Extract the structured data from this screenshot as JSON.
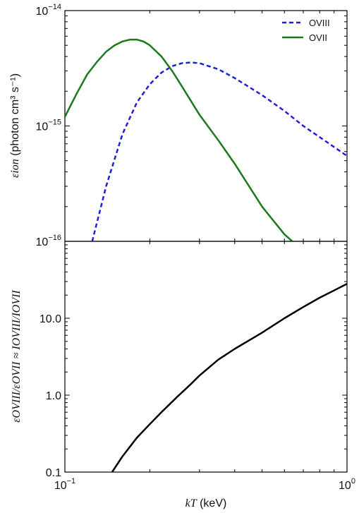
{
  "chart_data": [
    {
      "type": "line",
      "panel": "top",
      "yscale": "log",
      "xscale": "log",
      "xlim": [
        0.1,
        1.0
      ],
      "ylim": [
        1e-16,
        1e-14
      ],
      "ylabel_math": "εion",
      "ylabel_units": " (photon cm³ s⁻¹)",
      "ytick_labels": [
        {
          "base": "10",
          "exp": "−14",
          "value": 1e-14
        },
        {
          "base": "10",
          "exp": "−15",
          "value": 1e-15
        },
        {
          "base": "10",
          "exp": "−16",
          "value": 1e-16
        }
      ],
      "legend_position": "top-right",
      "series": [
        {
          "name": "OVIII",
          "style": "dashed",
          "color": "#1f1fe0",
          "x": [
            0.125,
            0.14,
            0.16,
            0.18,
            0.2,
            0.22,
            0.24,
            0.26,
            0.28,
            0.3,
            0.35,
            0.4,
            0.5,
            0.6,
            0.7,
            0.8,
            1.0
          ],
          "y": [
            1e-16,
            3e-16,
            8.5e-16,
            1.6e-15,
            2.3e-15,
            2.9e-15,
            3.3e-15,
            3.5e-15,
            3.55e-15,
            3.5e-15,
            3.1e-15,
            2.6e-15,
            1.85e-15,
            1.35e-15,
            1e-15,
            8e-16,
            5.5e-16
          ]
        },
        {
          "name": "OVII",
          "style": "solid",
          "color": "#1a7a1a",
          "x": [
            0.1,
            0.11,
            0.12,
            0.13,
            0.14,
            0.15,
            0.16,
            0.17,
            0.18,
            0.19,
            0.2,
            0.22,
            0.24,
            0.26,
            0.3,
            0.35,
            0.4,
            0.5,
            0.6,
            0.64
          ],
          "y": [
            1.2e-15,
            1.9e-15,
            2.8e-15,
            3.6e-15,
            4.4e-15,
            5e-15,
            5.4e-15,
            5.6e-15,
            5.6e-15,
            5.4e-15,
            5e-15,
            4e-15,
            3e-15,
            2.2e-15,
            1.25e-15,
            7.5e-16,
            4.7e-16,
            2e-16,
            1.15e-16,
            1e-16
          ]
        }
      ]
    },
    {
      "type": "line",
      "panel": "bottom",
      "yscale": "log",
      "xscale": "log",
      "xlim": [
        0.1,
        1.0
      ],
      "ylim": [
        0.1,
        100
      ],
      "ylabel_math": "εOVIII/εOVII ≈ IOVIII/IOVII",
      "ytick_labels": [
        {
          "label": "0.1",
          "value": 0.1
        },
        {
          "label": "1.0",
          "value": 1.0
        },
        {
          "label": "10.0",
          "value": 10.0
        }
      ],
      "xlabel_math": "kT",
      "xlabel_units": " (keV)",
      "xtick_labels": [
        {
          "base": "10",
          "exp": "−1",
          "value": 0.1
        },
        {
          "base": "10",
          "exp": "0",
          "value": 1.0
        }
      ],
      "series": [
        {
          "style": "solid",
          "color": "#000000",
          "x": [
            0.147,
            0.16,
            0.18,
            0.2,
            0.22,
            0.25,
            0.28,
            0.3,
            0.35,
            0.4,
            0.5,
            0.6,
            0.7,
            0.8,
            0.9,
            1.0
          ],
          "y": [
            0.1,
            0.16,
            0.28,
            0.42,
            0.6,
            0.95,
            1.4,
            1.8,
            2.9,
            4.0,
            6.5,
            10.0,
            14.0,
            18.5,
            23.0,
            28.0
          ]
        }
      ]
    }
  ]
}
